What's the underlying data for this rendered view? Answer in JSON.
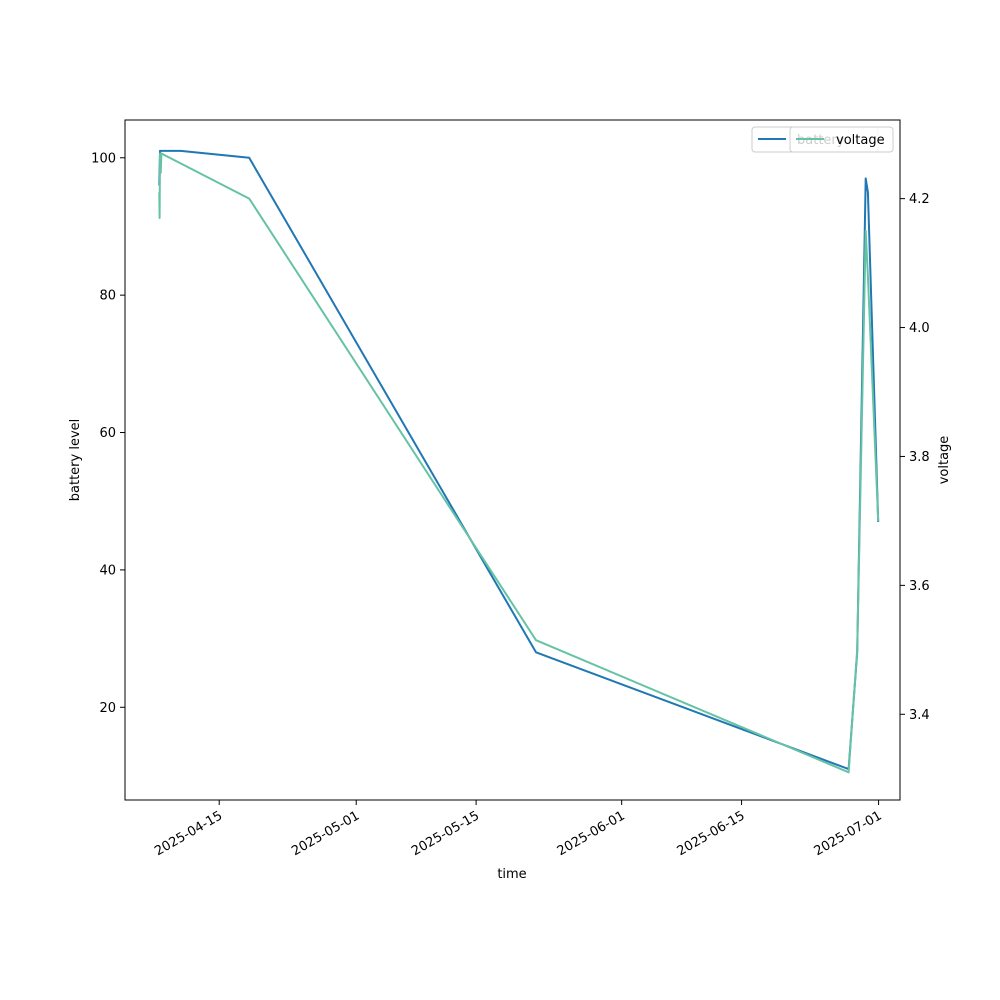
{
  "chart_data": {
    "type": "line",
    "xlabel": "time",
    "ylabel_left": "battery level",
    "ylabel_right": "voltage",
    "xlim": [
      "2025-04-04T00:00",
      "2025-07-03T12:00"
    ],
    "ylim_left": [
      6.5,
      105.5
    ],
    "ylim_right": [
      3.267,
      4.322
    ],
    "x_ticks": [
      "2025-04-15",
      "2025-05-01",
      "2025-05-15",
      "2025-06-01",
      "2025-06-15",
      "2025-07-01"
    ],
    "y_ticks_left": [
      20,
      40,
      60,
      80,
      100
    ],
    "y_ticks_right": [
      3.4,
      3.6,
      3.8,
      4.0,
      4.2
    ],
    "grid": false,
    "legend_placement": "upper-right",
    "series": [
      {
        "name": "battery",
        "axis": "left",
        "color": "#1f77b4",
        "points": [
          [
            "2025-04-08T00:00",
            96
          ],
          [
            "2025-04-08T02:00",
            101
          ],
          [
            "2025-04-08T12:00",
            101
          ],
          [
            "2025-04-10T12:00",
            101
          ],
          [
            "2025-04-18T12:00",
            100
          ],
          [
            "2025-05-22T00:00",
            28
          ],
          [
            "2025-06-27T12:00",
            11
          ],
          [
            "2025-06-28T12:00",
            28
          ],
          [
            "2025-06-29T12:00",
            97
          ],
          [
            "2025-06-29T18:00",
            95
          ],
          [
            "2025-06-30T23:00",
            47
          ]
        ]
      },
      {
        "name": "voltage",
        "axis": "right",
        "color": "#66c2a5",
        "points": [
          [
            "2025-04-08T00:00",
            4.21
          ],
          [
            "2025-04-08T01:00",
            4.17
          ],
          [
            "2025-04-08T02:00",
            4.27
          ],
          [
            "2025-04-08T04:00",
            4.24
          ],
          [
            "2025-04-08T06:00",
            4.27
          ],
          [
            "2025-04-18T12:00",
            4.2
          ],
          [
            "2025-05-22T00:00",
            3.515
          ],
          [
            "2025-06-27T12:00",
            3.31
          ],
          [
            "2025-06-28T12:00",
            3.5
          ],
          [
            "2025-06-29T12:00",
            4.15
          ],
          [
            "2025-06-29T18:00",
            4.08
          ],
          [
            "2025-06-30T23:00",
            3.7
          ]
        ]
      }
    ]
  },
  "legend": {
    "left_box": {
      "label": "battery"
    },
    "right_box": {
      "label": "voltage"
    }
  }
}
